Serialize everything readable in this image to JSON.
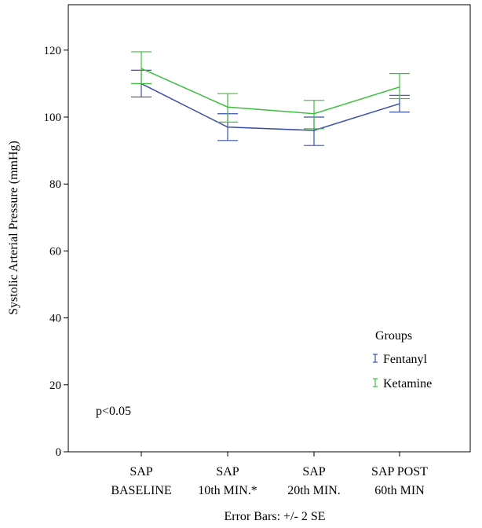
{
  "chart_data": {
    "type": "line",
    "title": "",
    "xlabel": "",
    "ylabel": "Systolic Arterial Pressure (mmHg)",
    "ylim": [
      0,
      132
    ],
    "yticks": [
      0,
      20,
      40,
      60,
      80,
      100,
      120
    ],
    "grid": false,
    "legend_position": "bottom-right",
    "legend_title": "Groups",
    "categories": [
      [
        "SAP",
        "BASELINE"
      ],
      [
        "SAP",
        "10th MIN.*"
      ],
      [
        "SAP",
        "20th MIN."
      ],
      [
        "SAP POST",
        "60th MIN"
      ]
    ],
    "series": [
      {
        "name": "Fentanyl",
        "color": "#3b4fa8",
        "values": [
          110,
          97,
          96,
          104
        ],
        "error_low": [
          106,
          93,
          91.5,
          101.5
        ],
        "error_high": [
          114,
          101,
          100,
          106.5
        ]
      },
      {
        "name": "Ketamine",
        "color": "#3fbf3f",
        "values": [
          114.5,
          103,
          101,
          109
        ],
        "error_low": [
          110,
          98.5,
          96.5,
          105.5
        ],
        "error_high": [
          119.5,
          107,
          105,
          113
        ]
      }
    ],
    "annotations": {
      "pvalue": "p<0.05",
      "error_bars": "Error Bars: +/- 2 SE"
    }
  }
}
